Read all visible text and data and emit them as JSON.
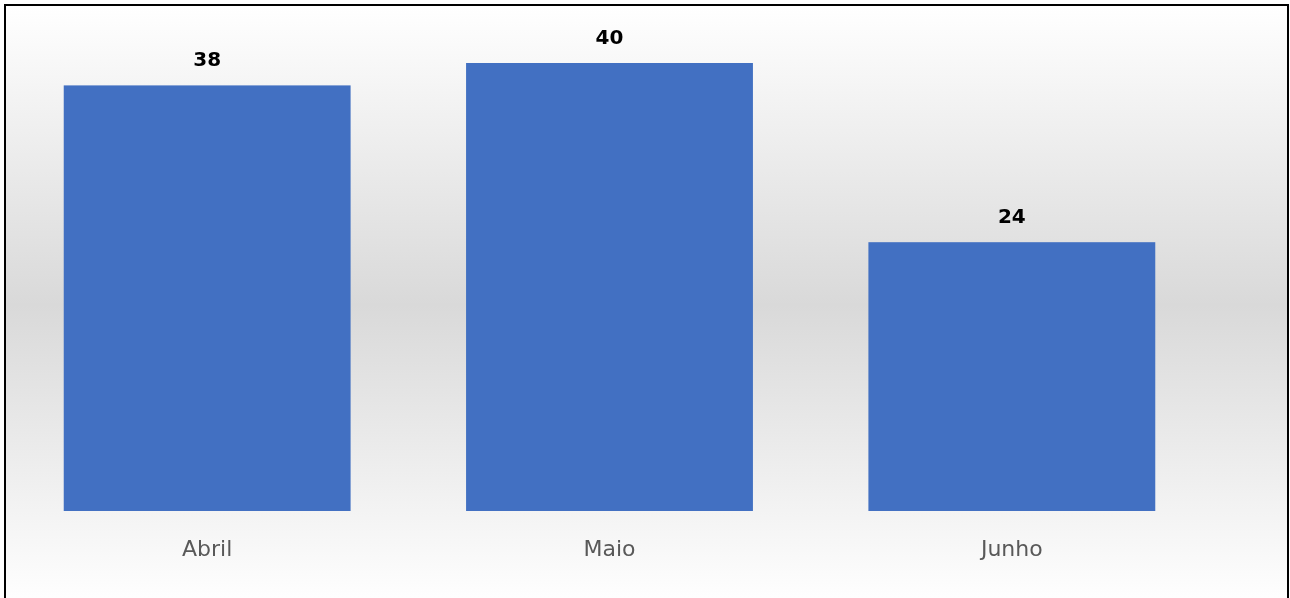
{
  "chart_data": {
    "type": "bar",
    "categories": [
      "Abril",
      "Maio",
      "Junho"
    ],
    "values": [
      38,
      40,
      24
    ],
    "color": "#4270c2",
    "data_labels": true
  }
}
